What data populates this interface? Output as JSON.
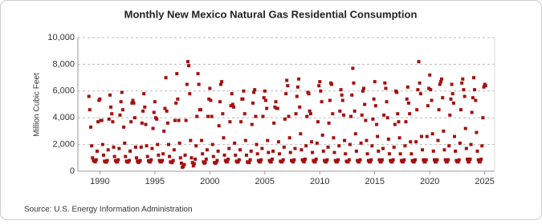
{
  "chart_data": {
    "type": "scatter",
    "title": "Monthly New Mexico Natural Gas Residential Consumption",
    "y_label": "Million Cubic Feet",
    "source": "Source: U.S. Energy Information Administration",
    "color": "#a3100f",
    "grid": true,
    "xlim": [
      1988,
      2025.9
    ],
    "xticks": [
      1990,
      1995,
      2000,
      2005,
      2010,
      2015,
      2020,
      2025
    ],
    "ylim": [
      0,
      10000
    ],
    "yticks": [
      0,
      {
        "value": 2000,
        "label": "2,000"
      },
      {
        "value": 4000,
        "label": "4,000"
      },
      {
        "value": 6000,
        "label": "6,000"
      },
      {
        "value": 8000,
        "label": "8,000"
      },
      {
        "value": 10000,
        "label": "10,000"
      }
    ],
    "x": [
      1989.0,
      1989.08,
      1989.17,
      1989.25,
      1989.33,
      1989.42,
      1989.5,
      1989.58,
      1989.67,
      1989.75,
      1989.83,
      1989.92,
      1990.0,
      1990.08,
      1990.17,
      1990.25,
      1990.33,
      1990.42,
      1990.5,
      1990.58,
      1990.67,
      1990.75,
      1990.83,
      1990.92,
      1991.0,
      1991.08,
      1991.17,
      1991.25,
      1991.33,
      1991.42,
      1991.5,
      1991.58,
      1991.67,
      1991.75,
      1991.83,
      1991.92,
      1992.0,
      1992.08,
      1992.17,
      1992.25,
      1992.33,
      1992.42,
      1992.5,
      1992.58,
      1992.67,
      1992.75,
      1992.83,
      1992.92,
      1993.0,
      1993.08,
      1993.17,
      1993.25,
      1993.33,
      1993.42,
      1993.5,
      1993.58,
      1993.67,
      1993.75,
      1993.83,
      1993.92,
      1994.0,
      1994.08,
      1994.17,
      1994.25,
      1994.33,
      1994.42,
      1994.5,
      1994.58,
      1994.67,
      1994.75,
      1994.83,
      1994.92,
      1995.0,
      1995.08,
      1995.17,
      1995.25,
      1995.33,
      1995.42,
      1995.5,
      1995.58,
      1995.67,
      1995.75,
      1995.83,
      1995.92,
      1996.0,
      1996.08,
      1996.17,
      1996.25,
      1996.33,
      1996.42,
      1996.5,
      1996.58,
      1996.67,
      1996.75,
      1996.83,
      1996.92,
      1997.0,
      1997.08,
      1997.17,
      1997.25,
      1997.33,
      1997.42,
      1997.5,
      1997.58,
      1997.67,
      1997.75,
      1997.83,
      1997.92,
      1998.0,
      1998.08,
      1998.17,
      1998.25,
      1998.33,
      1998.42,
      1998.5,
      1998.58,
      1998.67,
      1998.75,
      1998.83,
      1998.92,
      1999.0,
      1999.08,
      1999.17,
      1999.25,
      1999.33,
      1999.42,
      1999.5,
      1999.58,
      1999.67,
      1999.75,
      1999.83,
      1999.92,
      2000.0,
      2000.08,
      2000.17,
      2000.25,
      2000.33,
      2000.42,
      2000.5,
      2000.58,
      2000.67,
      2000.75,
      2000.83,
      2000.92,
      2001.0,
      2001.08,
      2001.17,
      2001.25,
      2001.33,
      2001.42,
      2001.5,
      2001.58,
      2001.67,
      2001.75,
      2001.83,
      2001.92,
      2002.0,
      2002.08,
      2002.17,
      2002.25,
      2002.33,
      2002.42,
      2002.5,
      2002.58,
      2002.67,
      2002.75,
      2002.83,
      2002.92,
      2003.0,
      2003.08,
      2003.17,
      2003.25,
      2003.33,
      2003.42,
      2003.5,
      2003.58,
      2003.67,
      2003.75,
      2003.83,
      2003.92,
      2004.0,
      2004.08,
      2004.17,
      2004.25,
      2004.33,
      2004.42,
      2004.5,
      2004.58,
      2004.67,
      2004.75,
      2004.83,
      2004.92,
      2005.0,
      2005.08,
      2005.17,
      2005.25,
      2005.33,
      2005.42,
      2005.5,
      2005.58,
      2005.67,
      2005.75,
      2005.83,
      2005.92,
      2006.0,
      2006.08,
      2006.17,
      2006.25,
      2006.33,
      2006.42,
      2006.5,
      2006.58,
      2006.67,
      2006.75,
      2006.83,
      2006.92,
      2007.0,
      2007.08,
      2007.17,
      2007.25,
      2007.33,
      2007.42,
      2007.5,
      2007.58,
      2007.67,
      2007.75,
      2007.83,
      2007.92,
      2008.0,
      2008.08,
      2008.17,
      2008.25,
      2008.33,
      2008.42,
      2008.5,
      2008.58,
      2008.67,
      2008.75,
      2008.83,
      2008.92,
      2009.0,
      2009.08,
      2009.17,
      2009.25,
      2009.33,
      2009.42,
      2009.5,
      2009.58,
      2009.67,
      2009.75,
      2009.83,
      2009.92,
      2010.0,
      2010.08,
      2010.17,
      2010.25,
      2010.33,
      2010.42,
      2010.5,
      2010.58,
      2010.67,
      2010.75,
      2010.83,
      2010.92,
      2011.0,
      2011.08,
      2011.17,
      2011.25,
      2011.33,
      2011.42,
      2011.5,
      2011.58,
      2011.67,
      2011.75,
      2011.83,
      2011.92,
      2012.0,
      2012.08,
      2012.17,
      2012.25,
      2012.33,
      2012.42,
      2012.5,
      2012.58,
      2012.67,
      2012.75,
      2012.83,
      2012.92,
      2013.0,
      2013.08,
      2013.17,
      2013.25,
      2013.33,
      2013.42,
      2013.5,
      2013.58,
      2013.67,
      2013.75,
      2013.83,
      2013.92,
      2014.0,
      2014.08,
      2014.17,
      2014.25,
      2014.33,
      2014.42,
      2014.5,
      2014.58,
      2014.67,
      2014.75,
      2014.83,
      2014.92,
      2015.0,
      2015.08,
      2015.17,
      2015.25,
      2015.33,
      2015.42,
      2015.5,
      2015.58,
      2015.67,
      2015.75,
      2015.83,
      2015.92,
      2016.0,
      2016.08,
      2016.17,
      2016.25,
      2016.33,
      2016.42,
      2016.5,
      2016.58,
      2016.67,
      2016.75,
      2016.83,
      2016.92,
      2017.0,
      2017.08,
      2017.17,
      2017.25,
      2017.33,
      2017.42,
      2017.5,
      2017.58,
      2017.67,
      2017.75,
      2017.83,
      2017.92,
      2018.0,
      2018.08,
      2018.17,
      2018.25,
      2018.33,
      2018.42,
      2018.5,
      2018.58,
      2018.67,
      2018.75,
      2018.83,
      2018.92,
      2019.0,
      2019.08,
      2019.17,
      2019.25,
      2019.33,
      2019.42,
      2019.5,
      2019.58,
      2019.67,
      2019.75,
      2019.83,
      2019.92,
      2020.0,
      2020.08,
      2020.17,
      2020.25,
      2020.33,
      2020.42,
      2020.5,
      2020.58,
      2020.67,
      2020.75,
      2020.83,
      2020.92,
      2021.0,
      2021.08,
      2021.17,
      2021.25,
      2021.33,
      2021.42,
      2021.5,
      2021.58,
      2021.67,
      2021.75,
      2021.83,
      2021.92,
      2022.0,
      2022.08,
      2022.17,
      2022.25,
      2022.33,
      2022.42,
      2022.5,
      2022.58,
      2022.67,
      2022.75,
      2022.83,
      2022.92,
      2023.0,
      2023.08,
      2023.17,
      2023.25,
      2023.33,
      2023.42,
      2023.5,
      2023.58,
      2023.67,
      2023.75,
      2023.83,
      2023.92,
      2024.0,
      2024.08,
      2024.17,
      2024.25,
      2024.33,
      2024.42,
      2024.5,
      2024.58,
      2024.67,
      2024.75,
      2024.83,
      2024.92,
      2025.0,
      2025.08
    ],
    "values": [
      5600,
      4600,
      3300,
      1900,
      1000,
      800,
      750,
      700,
      850,
      1500,
      3700,
      5300,
      5400,
      3800,
      3800,
      2000,
      1200,
      750,
      700,
      680,
      800,
      1600,
      3900,
      5700,
      4800,
      4300,
      3700,
      1800,
      1100,
      800,
      700,
      700,
      850,
      1700,
      4200,
      5200,
      5900,
      4600,
      3300,
      2100,
      1100,
      750,
      680,
      700,
      800,
      1500,
      3700,
      5100,
      5300,
      5100,
      4000,
      1800,
      1000,
      750,
      650,
      700,
      800,
      1800,
      3600,
      4500,
      5800,
      4800,
      3500,
      1900,
      1100,
      780,
      700,
      700,
      850,
      1700,
      3200,
      4400,
      5200,
      4000,
      3900,
      2000,
      1200,
      800,
      700,
      700,
      800,
      1300,
      3000,
      4700,
      7000,
      4500,
      3600,
      2000,
      1100,
      700,
      650,
      650,
      800,
      1600,
      3800,
      5100,
      7300,
      5400,
      3800,
      2100,
      1000,
      600,
      300,
      350,
      500,
      1200,
      3800,
      6500,
      8200,
      7900,
      5800,
      2300,
      1000,
      650,
      400,
      550,
      900,
      1900,
      4100,
      7300,
      6500,
      4600,
      4600,
      2300,
      1300,
      700,
      600,
      650,
      900,
      1600,
      4100,
      5400,
      6200,
      5300,
      4100,
      2000,
      1100,
      650,
      600,
      650,
      800,
      1500,
      3400,
      5200,
      6500,
      6700,
      4300,
      2500,
      1200,
      800,
      700,
      700,
      900,
      1700,
      3700,
      4900,
      5800,
      5000,
      4800,
      2100,
      1200,
      750,
      680,
      700,
      850,
      1600,
      3700,
      5400,
      5400,
      6000,
      4300,
      2300,
      1200,
      700,
      650,
      650,
      850,
      1500,
      3500,
      5100,
      5900,
      6100,
      4100,
      2000,
      1300,
      800,
      700,
      700,
      850,
      1700,
      4100,
      5500,
      6000,
      5300,
      4700,
      2300,
      1400,
      800,
      700,
      700,
      900,
      1500,
      3600,
      4800,
      5200,
      4700,
      4700,
      2200,
      1300,
      750,
      700,
      700,
      850,
      1800,
      3900,
      5800,
      6800,
      6400,
      4100,
      2500,
      1400,
      800,
      750,
      700,
      850,
      1700,
      4300,
      5600,
      6300,
      6900,
      4800,
      2800,
      1600,
      850,
      750,
      700,
      900,
      1900,
      4100,
      5900,
      5800,
      4500,
      4300,
      2200,
      1400,
      800,
      700,
      700,
      900,
      2100,
      3700,
      6400,
      6700,
      6000,
      5200,
      2700,
      1500,
      800,
      700,
      700,
      850,
      1800,
      3600,
      5300,
      6600,
      6500,
      4300,
      2500,
      1400,
      800,
      700,
      700,
      850,
      1900,
      4500,
      6100,
      5700,
      5300,
      4200,
      2300,
      1300,
      750,
      700,
      700,
      850,
      2000,
      4100,
      5700,
      7700,
      6600,
      4500,
      2800,
      1500,
      800,
      700,
      700,
      850,
      2100,
      4200,
      6000,
      6200,
      5000,
      3800,
      2300,
      1300,
      800,
      700,
      700,
      850,
      1900,
      3900,
      5400,
      6700,
      4900,
      3500,
      2600,
      1500,
      850,
      700,
      700,
      850,
      1700,
      4200,
      6600,
      6200,
      5200,
      4000,
      2400,
      1300,
      800,
      700,
      700,
      850,
      1800,
      3500,
      6000,
      5900,
      4300,
      3700,
      2500,
      1300,
      800,
      700,
      700,
      850,
      1900,
      3700,
      5400,
      6300,
      5100,
      4300,
      2200,
      1300,
      800,
      700,
      700,
      850,
      2200,
      4600,
      6100,
      8200,
      6600,
      5800,
      2600,
      1600,
      850,
      700,
      700,
      850,
      2600,
      4900,
      6200,
      7200,
      6100,
      5300,
      2800,
      1500,
      850,
      700,
      700,
      850,
      2300,
      4600,
      6500,
      6700,
      6900,
      5500,
      3000,
      1600,
      850,
      700,
      700,
      850,
      1900,
      4200,
      5400,
      6500,
      5800,
      5100,
      2600,
      1500,
      800,
      700,
      700,
      850,
      2100,
      4600,
      6600,
      6900,
      6100,
      5600,
      3200,
      1700,
      900,
      700,
      700,
      900,
      2000,
      4400,
      5500,
      7000,
      6100,
      5300,
      2900,
      1500,
      850,
      700,
      700,
      900,
      1900,
      4000,
      6300,
      6500,
      6400
    ]
  }
}
